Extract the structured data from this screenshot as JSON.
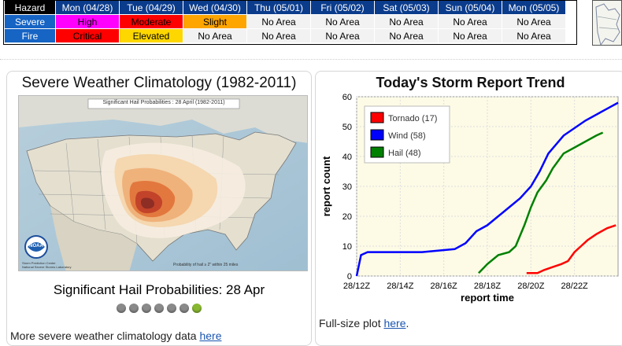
{
  "hazard_table": {
    "header": [
      "Hazard",
      "Mon (04/28)",
      "Tue (04/29)",
      "Wed (04/30)",
      "Thu (05/01)",
      "Fri (05/02)",
      "Sat (05/03)",
      "Sun (05/04)",
      "Mon (05/05)"
    ],
    "rows": [
      {
        "label": "Severe",
        "values": [
          "High",
          "Moderate",
          "Slight",
          "No Area",
          "No Area",
          "No Area",
          "No Area",
          "No Area"
        ]
      },
      {
        "label": "Fire",
        "values": [
          "Critical",
          "Elevated",
          "No Area",
          "No Area",
          "No Area",
          "No Area",
          "No Area",
          "No Area"
        ]
      }
    ],
    "colors": {
      "High": "#ff00ff",
      "Moderate": "#ff0000",
      "Slight": "#ffa500",
      "Critical": "#ff0000",
      "Elevated": "#ffd700"
    }
  },
  "climatology": {
    "title": "Severe Weather Climatology (1982-2011)",
    "map_title": "Significant Hail Probabilities : 28 April (1982-2011)",
    "map_footer": "Probability of hail ≥ 2\" within 25 miles",
    "org": "NOAA",
    "org_text": "Storm Prediction Center\nNational Severe Storms Laboratory",
    "caption": "Significant Hail Probabilities: 28 Apr",
    "slide_count": 7,
    "active_slide": 7,
    "more_text": "More severe weather climatology data ",
    "more_link": "here"
  },
  "storm_trend": {
    "title": "Today's Storm Report Trend",
    "fullsize_text": "Full-size plot ",
    "fullsize_link": "here",
    "fullsize_tail": "."
  },
  "chart_data": {
    "type": "line",
    "title": "Today's Storm Report Trend",
    "xlabel": "report time",
    "ylabel": "report count",
    "x_ticks": [
      "28/12Z",
      "28/14Z",
      "28/16Z",
      "28/18Z",
      "28/20Z",
      "28/22Z"
    ],
    "xlim": [
      12,
      24
    ],
    "ylim": [
      0,
      60
    ],
    "y_ticks": [
      0,
      10,
      20,
      30,
      40,
      50,
      60
    ],
    "grid": true,
    "legend": "top-left",
    "series": [
      {
        "name": "Tornado (17)",
        "color": "#ff0000",
        "x": [
          19.8,
          20.3,
          20.6,
          21.0,
          21.4,
          21.7,
          22.0,
          22.3,
          22.6,
          23.0,
          23.5,
          23.9
        ],
        "y": [
          1,
          1,
          2,
          3,
          4,
          5,
          8,
          10,
          12,
          14,
          16,
          17
        ]
      },
      {
        "name": "Wind (58)",
        "color": "#0000ff",
        "x": [
          12.0,
          12.2,
          12.5,
          13.5,
          15.0,
          16.5,
          17.0,
          17.5,
          18.0,
          18.5,
          19.0,
          19.5,
          20.0,
          20.4,
          20.8,
          21.5,
          22.5,
          23.5,
          24.0
        ],
        "y": [
          0,
          7,
          8,
          8,
          8,
          9,
          11,
          15,
          17,
          20,
          23,
          26,
          30,
          35,
          41,
          47,
          52,
          56,
          58
        ]
      },
      {
        "name": "Hail (48)",
        "color": "#008000",
        "x": [
          17.6,
          18.0,
          18.5,
          19.0,
          19.3,
          19.7,
          20.0,
          20.3,
          20.7,
          21.0,
          21.5,
          22.0,
          22.5,
          23.0,
          23.3
        ],
        "y": [
          1,
          4,
          7,
          8,
          10,
          17,
          23,
          28,
          32,
          36,
          41,
          43,
          45,
          47,
          48
        ]
      }
    ]
  }
}
